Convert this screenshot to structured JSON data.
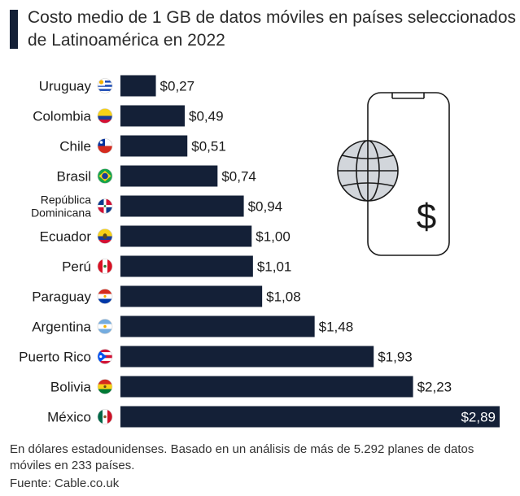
{
  "title": "Costo medio de 1 GB de datos móviles en países seleccionados de Latinoamérica en 2022",
  "chart_data": {
    "type": "bar",
    "orientation": "horizontal",
    "categories": [
      "Uruguay",
      "Colombia",
      "Chile",
      "Brasil",
      "República Dominicana",
      "Ecuador",
      "Perú",
      "Paraguay",
      "Argentina",
      "Puerto Rico",
      "Bolivia",
      "México"
    ],
    "values": [
      0.27,
      0.49,
      0.51,
      0.74,
      0.94,
      1.0,
      1.01,
      1.08,
      1.48,
      1.93,
      2.23,
      2.89
    ],
    "value_labels": [
      "$0,27",
      "$0,49",
      "$0,51",
      "$0,74",
      "$0,94",
      "$1,00",
      "$1,01",
      "$1,08",
      "$1,48",
      "$1,93",
      "$2,23",
      "$2,89"
    ],
    "category_lines": [
      [
        "Uruguay"
      ],
      [
        "Colombia"
      ],
      [
        "Chile"
      ],
      [
        "Brasil"
      ],
      [
        "República",
        "Dominicana"
      ],
      [
        "Ecuador"
      ],
      [
        "Perú"
      ],
      [
        "Paraguay"
      ],
      [
        "Argentina"
      ],
      [
        "Puerto Rico"
      ],
      [
        "Bolivia"
      ],
      [
        "México"
      ]
    ],
    "flags": [
      "flag-uruguay",
      "flag-colombia",
      "flag-chile",
      "flag-brazil",
      "flag-dominican-republic",
      "flag-ecuador",
      "flag-peru",
      "flag-paraguay",
      "flag-argentina",
      "flag-puerto-rico",
      "flag-bolivia",
      "flag-mexico"
    ],
    "xlim": [
      0,
      2.89
    ],
    "bar_color": "#142037",
    "grid": false,
    "legend": "none"
  },
  "illustration": {
    "icon": "phone-globe-dollar-icon",
    "symbol": "$"
  },
  "footer": {
    "note": "En dólares estadounidenses. Basado en un análisis de más de 5.292 planes de datos móviles en 233 países.",
    "source": "Fuente: Cable.co.uk"
  },
  "colors": {
    "bar": "#142037",
    "accent": "#142037",
    "text": "#1a1a1a"
  }
}
